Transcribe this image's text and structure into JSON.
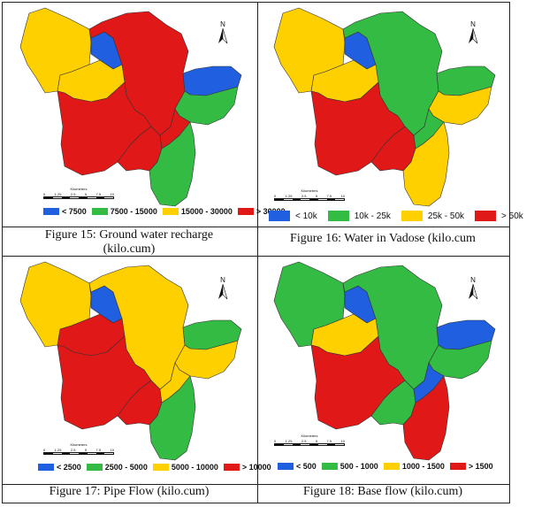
{
  "colors": {
    "blue": "#1f5fe0",
    "green": "#33bb44",
    "yellow": "#ffd000",
    "red": "#e01818",
    "outline": "#333333"
  },
  "north_label": "N",
  "scale": {
    "title": "Kilometers",
    "ticks": [
      "0",
      "1.25",
      "2.5",
      "5",
      "7.5",
      "10"
    ]
  },
  "maps": [
    {
      "caption_line1": "Figure 15: Ground water recharge",
      "caption_line2": "(kilo.cum)",
      "legend": [
        {
          "label": "< 7500",
          "color": "blue"
        },
        {
          "label": "7500 - 15000",
          "color": "green"
        },
        {
          "label": "15000 - 30000",
          "color": "yellow"
        },
        {
          "label": "> 30000",
          "color": "red"
        }
      ],
      "regions": [
        "yellow",
        "blue",
        "red",
        "yellow",
        "red",
        "red",
        "blue",
        "green",
        "red",
        "green"
      ]
    },
    {
      "caption_line1": "Figure 16: Water in Vadose (kilo.cum",
      "caption_line2": "",
      "legend": [
        {
          "label": "< 10k",
          "color": "blue"
        },
        {
          "label": "10k - 25k",
          "color": "green"
        },
        {
          "label": "25k - 50k",
          "color": "yellow"
        },
        {
          "label": "> 50k",
          "color": "red"
        }
      ],
      "regions": [
        "yellow",
        "blue",
        "green",
        "yellow",
        "red",
        "red",
        "green",
        "yellow",
        "green",
        "yellow"
      ]
    },
    {
      "caption_line1": "Figure 17: Pipe Flow (kilo.cum)",
      "caption_line2": "",
      "legend": [
        {
          "label": "< 2500",
          "color": "blue"
        },
        {
          "label": "2500 - 5000",
          "color": "green"
        },
        {
          "label": "5000 - 10000",
          "color": "yellow"
        },
        {
          "label": "> 10000",
          "color": "red"
        }
      ],
      "regions": [
        "yellow",
        "blue",
        "yellow",
        "red",
        "red",
        "red",
        "green",
        "yellow",
        "yellow",
        "green"
      ]
    },
    {
      "caption_line1": "Figure 18: Base flow (kilo.cum)",
      "caption_line2": "",
      "legend": [
        {
          "label": "< 500",
          "color": "blue"
        },
        {
          "label": "500 - 1000",
          "color": "green"
        },
        {
          "label": "1000 - 1500",
          "color": "yellow"
        },
        {
          "label": "> 1500",
          "color": "red"
        }
      ],
      "regions": [
        "green",
        "blue",
        "green",
        "yellow",
        "red",
        "green",
        "blue",
        "green",
        "blue",
        "red"
      ]
    }
  ]
}
